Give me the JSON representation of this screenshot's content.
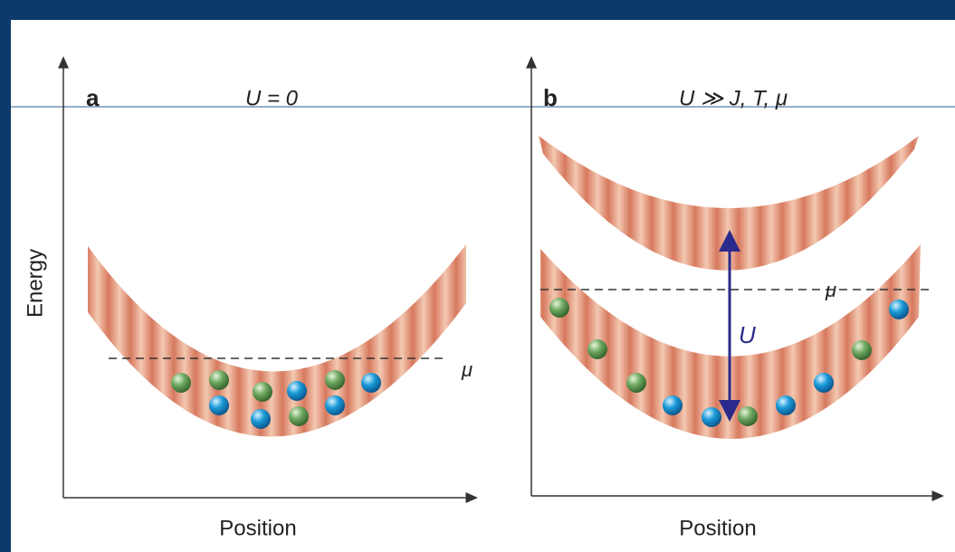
{
  "panels": [
    {
      "label": "a",
      "condition": "U = 0",
      "y_axis": "Energy",
      "x_axis": "Position",
      "chemical_potential": "μ"
    },
    {
      "label": "b",
      "condition": "U ≫ J, T, μ",
      "x_axis": "Position",
      "chemical_potential": "μ",
      "gap_label": "U"
    }
  ]
}
